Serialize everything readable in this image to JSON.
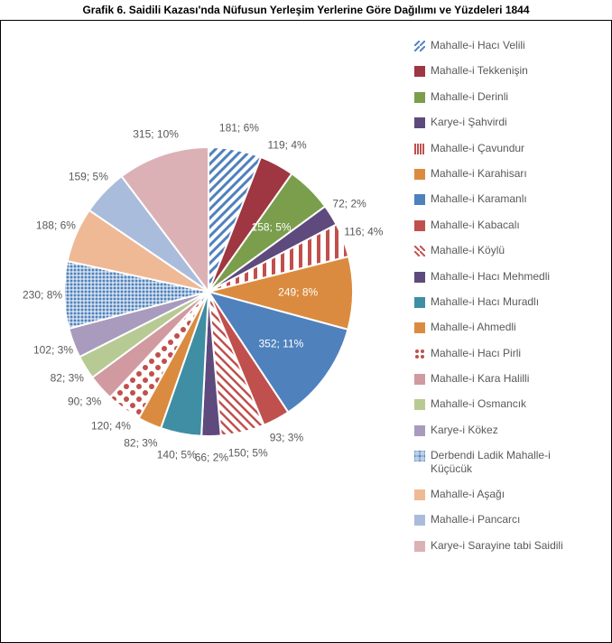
{
  "title": "Grafik 6. Saidili Kazası'nda Nüfusun Yerleşim Yerlerine Göre Dağılımı ve Yüzdeleri 1844",
  "chart": {
    "type": "pie",
    "background_color": "#ffffff",
    "border_color": "#000000",
    "label_color": "#595959",
    "label_fontsize": 12,
    "start_angle_deg": -90,
    "radius": 160,
    "inner_radius": 0,
    "slices": [
      {
        "name": "Mahalle-i Hacı Velili",
        "value": 181,
        "percent": 6,
        "label": "181; 6%",
        "fill": "#ffffff",
        "pattern": "diag-r",
        "pattern_color": "#4f81bd",
        "label_pos": "outside"
      },
      {
        "name": "Mahalle-i Tekkenişin",
        "value": 119,
        "percent": 4,
        "label": "119; 4%",
        "fill": "#9e3742",
        "label_pos": "outside"
      },
      {
        "name": "Mahalle-i Derinli",
        "value": 158,
        "percent": 5,
        "label": "158; 5%",
        "fill": "#7a9e4c",
        "label_pos": "inside"
      },
      {
        "name": "Karye-i Şahvirdi",
        "value": 72,
        "percent": 2,
        "label": "72; 2%",
        "fill": "#5e4a7d",
        "label_pos": "outside"
      },
      {
        "name": "Mahalle-i Çavundur",
        "value": 116,
        "percent": 4,
        "label": "116; 4%",
        "fill": "#ffffff",
        "pattern": "vstripe",
        "pattern_color": "#c0504d",
        "label_pos": "outside"
      },
      {
        "name": "Mahalle-i Karahisarı",
        "value": 249,
        "percent": 8,
        "label": "249; 8%",
        "fill": "#db8b3f",
        "label_pos": "inside"
      },
      {
        "name": "Mahalle-i Karamanlı",
        "value": 352,
        "percent": 11,
        "label": "352; 11%",
        "fill": "#4f81bd",
        "label_pos": "inside"
      },
      {
        "name": "Mahalle-i Kabacalı",
        "value": 93,
        "percent": 3,
        "label": "93; 3%",
        "fill": "#c0504d",
        "label_pos": "outside"
      },
      {
        "name": "Mahalle-i Köylü",
        "value": 150,
        "percent": 5,
        "label": "150; 5%",
        "fill": "#ffffff",
        "pattern": "diag-l",
        "pattern_color": "#c0504d",
        "label_pos": "outside"
      },
      {
        "name": "Mahalle-i Hacı Mehmedli",
        "value": 66,
        "percent": 2,
        "label": "66; 2%",
        "fill": "#5e4a7d",
        "label_pos": "outside"
      },
      {
        "name": "Mahalle-i Hacı Muradlı",
        "value": 140,
        "percent": 5,
        "label": "140; 5%",
        "fill": "#3f8ea3",
        "label_pos": "outside"
      },
      {
        "name": "Mahalle-i Ahmedli",
        "value": 82,
        "percent": 3,
        "label": "82; 3%",
        "fill": "#db8b3f",
        "label_pos": "outside"
      },
      {
        "name": "Mahalle-i Hacı Pirli",
        "value": 120,
        "percent": 4,
        "label": "120; 4%",
        "fill": "#ffffff",
        "pattern": "dots",
        "pattern_color": "#c0504d",
        "label_pos": "outside"
      },
      {
        "name": "Mahalle-i Kara Halilli",
        "value": 90,
        "percent": 3,
        "label": "90; 3%",
        "fill": "#d19aa0",
        "label_pos": "outside"
      },
      {
        "name": "Mahalle-i Osmancık",
        "value": 82,
        "percent": 3,
        "label": "82; 3%",
        "fill": "#b7ca93",
        "label_pos": "outside"
      },
      {
        "name": "Karye-i Kökez",
        "value": 102,
        "percent": 3,
        "label": "102; 3%",
        "fill": "#a99bbd",
        "label_pos": "outside"
      },
      {
        "name": "Derbendi Ladik Mahalle-i Küçücük",
        "value": 230,
        "percent": 8,
        "label": "230; 8%",
        "fill": "#ffffff",
        "pattern": "weave",
        "pattern_color": "#4f81bd",
        "label_pos": "outside"
      },
      {
        "name": "Mahalle-i Aşağı",
        "value": 188,
        "percent": 6,
        "label": "188; 6%",
        "fill": "#efb995",
        "label_pos": "outside"
      },
      {
        "name": "Mahalle-i Pancarcı",
        "value": 159,
        "percent": 5,
        "label": "159; 5%",
        "fill": "#a9bcdb",
        "label_pos": "outside"
      },
      {
        "name": "Karye-i Sarayine tabi Saidili",
        "value": 315,
        "percent": 10,
        "label": "315; 10%",
        "fill": "#dcb1b5",
        "label_pos": "outside"
      }
    ]
  }
}
